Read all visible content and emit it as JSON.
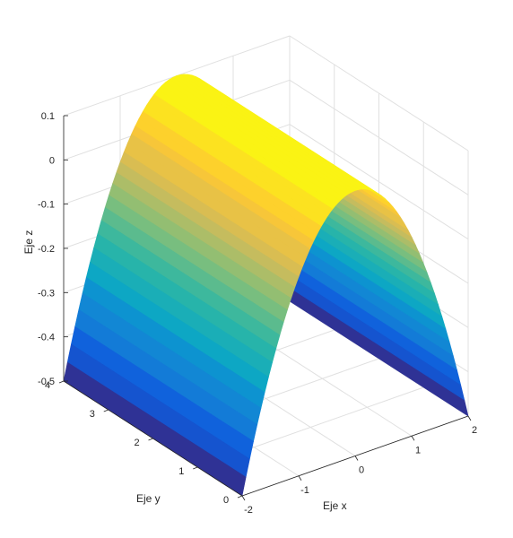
{
  "chart_data": {
    "type": "surface",
    "title": "",
    "xlabel": "Eje x",
    "ylabel": "Eje y",
    "zlabel": "Eje z",
    "xlim": [
      -2,
      2
    ],
    "ylim": [
      0,
      4
    ],
    "zlim": [
      -0.5,
      0.1
    ],
    "x_ticks": [
      -2,
      -1,
      0,
      1,
      2
    ],
    "y_ticks": [
      0,
      1,
      2,
      3,
      4
    ],
    "z_ticks": [
      -0.5,
      -0.4,
      -0.3,
      -0.2,
      -0.1,
      0,
      0.1
    ],
    "x_tick_labels": [
      "-2",
      "-1",
      "0",
      "1",
      "2"
    ],
    "y_tick_labels": [
      "0",
      "1",
      "2",
      "3",
      "4"
    ],
    "z_tick_labels": [
      "-0.5",
      "-0.4",
      "-0.3",
      "-0.2",
      "-0.1",
      "0",
      "0.1"
    ],
    "surface": {
      "x_range": [
        -2,
        2
      ],
      "y_range": [
        0,
        4
      ],
      "z_at_x": [
        [
          -2,
          -0.5
        ],
        [
          -1.5,
          -0.3
        ],
        [
          -1,
          -0.15
        ],
        [
          -0.5,
          0.05
        ],
        [
          -0.25,
          0.085
        ],
        [
          0,
          0.1
        ],
        [
          0.25,
          0.085
        ],
        [
          0.5,
          0.05
        ],
        [
          1,
          -0.15
        ],
        [
          1.5,
          -0.3
        ],
        [
          2,
          -0.5
        ]
      ],
      "colormap": "parula",
      "color_levels": 24
    },
    "grid": true,
    "box": false
  },
  "colors": {
    "axis_line": "#262626",
    "grid_line": "#e0e0e0",
    "parula_stops": [
      "#352a87",
      "#0f5cdd",
      "#1481d6",
      "#06a4ca",
      "#2eb7a4",
      "#87bf77",
      "#d1bb59",
      "#fec832",
      "#f9fb0e"
    ]
  }
}
